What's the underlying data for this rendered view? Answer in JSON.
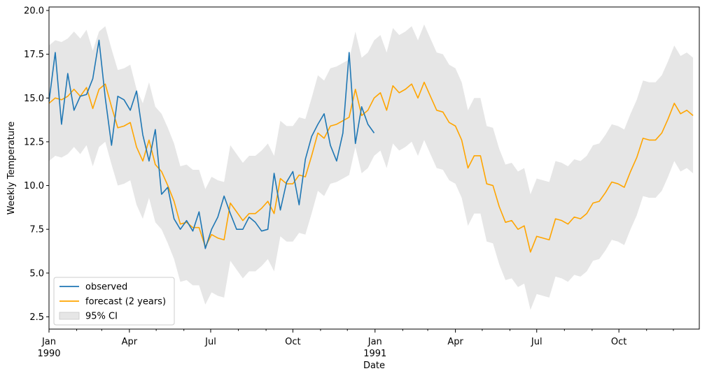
{
  "chart_data": {
    "type": "line",
    "title": "",
    "xlabel": "Date",
    "ylabel": "Weekly Temperature",
    "ylim": [
      1.8,
      20.2
    ],
    "xlim": [
      "1990-01-01",
      "1991-12-30"
    ],
    "yticks": [
      2.5,
      5.0,
      7.5,
      10.0,
      12.5,
      15.0,
      17.5,
      20.0
    ],
    "ytick_labels": [
      "2.5",
      "5.0",
      "7.5",
      "10.0",
      "12.5",
      "15.0",
      "17.5",
      "20.0"
    ],
    "xticks": [
      {
        "date": "1990-01-01",
        "line1": "Jan",
        "line2": "1990"
      },
      {
        "date": "1990-04-01",
        "line1": "Apr",
        "line2": ""
      },
      {
        "date": "1990-07-01",
        "line1": "Jul",
        "line2": ""
      },
      {
        "date": "1990-10-01",
        "line1": "Oct",
        "line2": ""
      },
      {
        "date": "1991-01-01",
        "line1": "Jan",
        "line2": "1991"
      },
      {
        "date": "1991-04-01",
        "line1": "Apr",
        "line2": ""
      },
      {
        "date": "1991-07-01",
        "line1": "Jul",
        "line2": ""
      },
      {
        "date": "1991-10-01",
        "line1": "Oct",
        "line2": ""
      }
    ],
    "minor_ticks": [
      "1990-02-01",
      "1990-03-01",
      "1990-05-01",
      "1990-06-01",
      "1990-08-01",
      "1990-09-01",
      "1990-11-01",
      "1990-12-01",
      "1991-02-01",
      "1991-03-01",
      "1991-05-01",
      "1991-06-01",
      "1991-08-01",
      "1991-09-01",
      "1991-11-01",
      "1991-12-01"
    ],
    "grid": false,
    "legend_position": "lower-left",
    "x_start": "1990-01-01",
    "x_step_days": 7,
    "series": [
      {
        "name": "observed",
        "color": "#1f77b4",
        "values": [
          14.8,
          17.6,
          13.5,
          16.4,
          14.3,
          15.1,
          15.2,
          16.1,
          18.3,
          15.0,
          12.3,
          15.1,
          14.9,
          14.3,
          15.4,
          12.9,
          11.4,
          13.2,
          9.5,
          9.9,
          8.1,
          7.5,
          8.0,
          7.4,
          8.5,
          6.4,
          7.5,
          8.2,
          9.4,
          8.4,
          7.5,
          7.5,
          8.2,
          7.9,
          7.4,
          7.5,
          10.7,
          8.6,
          10.2,
          10.8,
          8.9,
          11.5,
          12.8,
          13.5,
          14.1,
          12.3,
          11.4,
          13.0,
          17.6,
          12.4,
          14.5,
          13.5,
          13.0
        ]
      },
      {
        "name": "forecast (2 years)",
        "color": "#ffa500",
        "values": [
          14.7,
          15.0,
          14.9,
          15.1,
          15.5,
          15.1,
          15.6,
          14.4,
          15.5,
          15.8,
          14.5,
          13.3,
          13.4,
          13.6,
          12.2,
          11.4,
          12.6,
          11.2,
          10.8,
          10.0,
          9.1,
          7.8,
          7.9,
          7.6,
          7.6,
          6.5,
          7.2,
          7.0,
          6.9,
          9.0,
          8.5,
          8.0,
          8.4,
          8.4,
          8.7,
          9.1,
          8.4,
          10.4,
          10.1,
          10.1,
          10.6,
          10.5,
          11.7,
          13.0,
          12.7,
          13.4,
          13.5,
          13.7,
          13.9,
          15.5,
          14.0,
          14.3,
          15.0,
          15.3,
          14.3,
          15.7,
          15.3,
          15.5,
          15.8,
          15.0,
          15.9,
          15.1,
          14.3,
          14.2,
          13.6,
          13.4,
          12.6,
          11.0,
          11.7,
          11.7,
          10.1,
          10.0,
          8.8,
          7.9,
          8.0,
          7.5,
          7.7,
          6.2,
          7.1,
          7.0,
          6.9,
          8.1,
          8.0,
          7.8,
          8.2,
          8.1,
          8.4,
          9.0,
          9.1,
          9.6,
          10.2,
          10.1,
          9.9,
          10.8,
          11.6,
          12.7,
          12.6,
          12.6,
          13.0,
          13.8,
          14.7,
          14.1,
          14.3,
          14.0
        ]
      },
      {
        "name": "95% CI",
        "color": "#d9d9d9",
        "band_width": 3.3
      }
    ]
  }
}
